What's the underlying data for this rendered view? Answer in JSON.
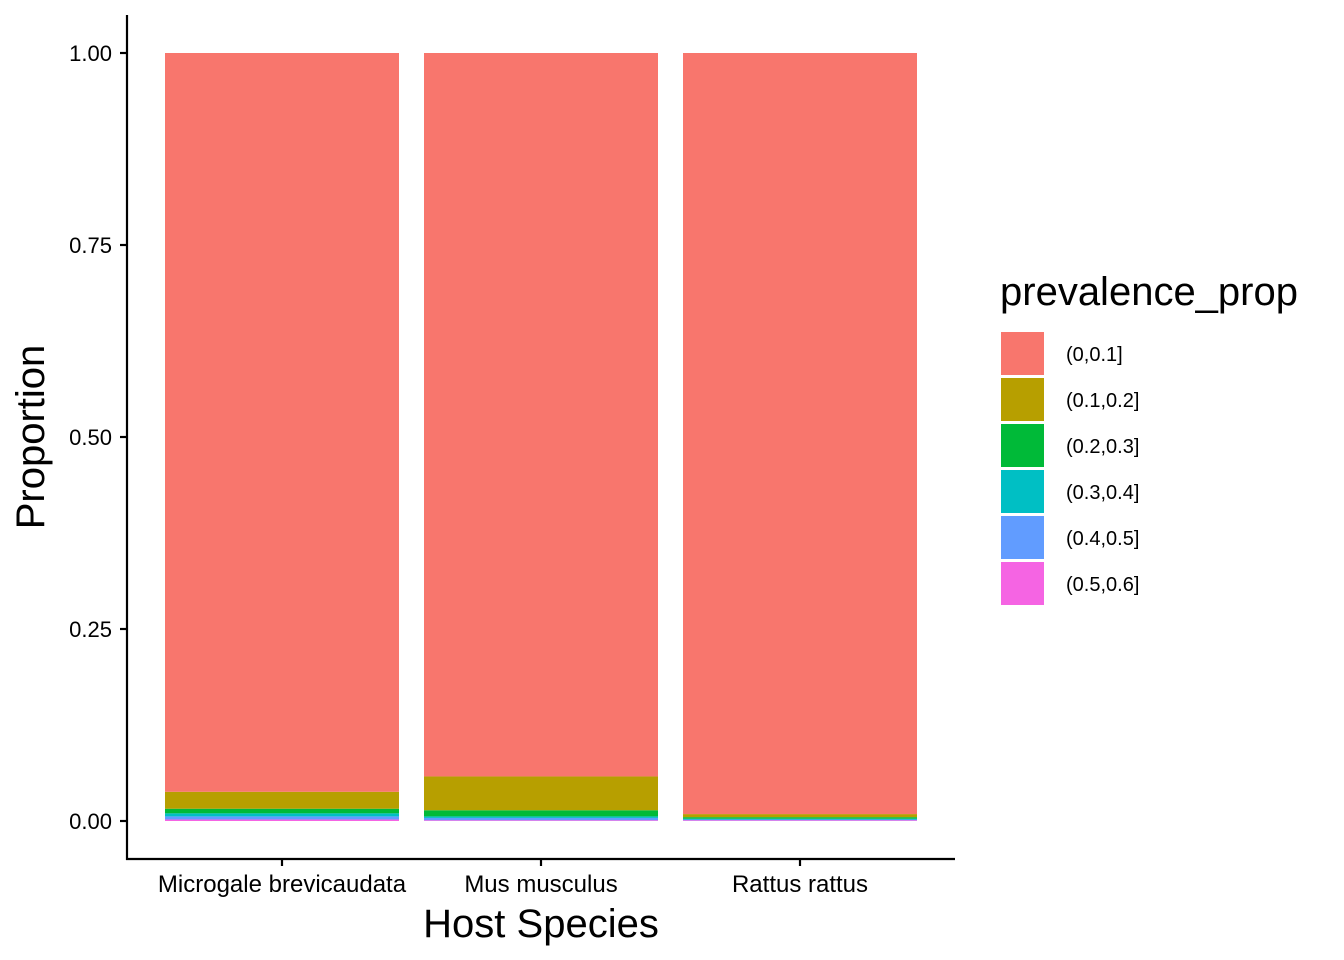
{
  "chart_data": {
    "type": "bar",
    "stacked": true,
    "normalized": true,
    "xlabel": "Host Species",
    "ylabel": "Proportion",
    "ylim": [
      0,
      1
    ],
    "yticks": [
      "0.00",
      "0.25",
      "0.50",
      "0.75",
      "1.00"
    ],
    "categories": [
      "Microgale brevicaudata",
      "Mus musculus",
      "Rattus rattus"
    ],
    "legend": {
      "title": "prevalence_prop",
      "position": "right"
    },
    "series": [
      {
        "name": "(0,0.1]",
        "color": "#F8766D",
        "values": [
          0.962,
          0.942,
          0.991
        ]
      },
      {
        "name": "(0.1,0.2]",
        "color": "#B79F00",
        "values": [
          0.022,
          0.044,
          0.004
        ]
      },
      {
        "name": "(0.2,0.3]",
        "color": "#00BA38",
        "values": [
          0.006,
          0.008,
          0.002
        ]
      },
      {
        "name": "(0.3,0.4]",
        "color": "#00BFC4",
        "values": [
          0.004,
          0.002,
          0.001
        ]
      },
      {
        "name": "(0.4,0.5]",
        "color": "#619CFF",
        "values": [
          0.004,
          0.003,
          0.001
        ]
      },
      {
        "name": "(0.5,0.6]",
        "color": "#F564E3",
        "values": [
          0.002,
          0.001,
          0.001
        ]
      }
    ],
    "grid": false
  }
}
